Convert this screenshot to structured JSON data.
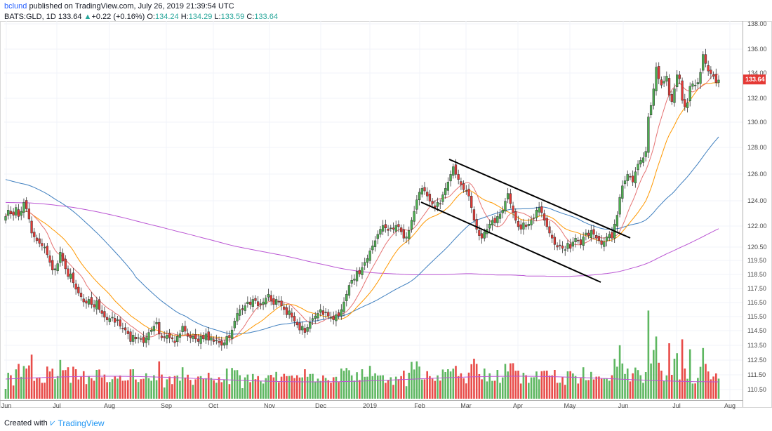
{
  "header": {
    "user": "bclund",
    "published": " published on TradingView.com, July 26, 2019 21:39:54 UTC",
    "symbol": "BATS:GLD, 1D",
    "last": "133.64",
    "change_arrow": "▲",
    "change": "+0.22 (+0.16%)",
    "o_label": "O:",
    "o_val": "134.24",
    "h_label": "H:",
    "h_val": "134.29",
    "l_label": "L:",
    "l_val": "133.59",
    "c_label": "C:",
    "c_val": "133.64"
  },
  "footer": {
    "created_with": "Created with",
    "brand": "TradingView"
  },
  "colors": {
    "up": "#4caf50",
    "down": "#e53935",
    "ma_red": "#e57373",
    "ma_orange": "#ff9800",
    "ma_blue": "#3f7fbf",
    "ma_purple": "#ba55d3",
    "price_tag": "#e53935"
  },
  "chart_data": {
    "type": "candlestick",
    "x_tick_labels": [
      "Jun",
      "Jul",
      "Aug",
      "Sep",
      "Oct",
      "Nov",
      "Dec",
      "2019",
      "Feb",
      "Mar",
      "Apr",
      "May",
      "Jun",
      "Jul",
      "Aug"
    ],
    "y_tick_labels": [
      "138.00",
      "136.00",
      "134.00",
      "132.00",
      "130.00",
      "128.00",
      "126.00",
      "124.00",
      "122.00",
      "120.50",
      "119.50",
      "118.50",
      "117.50",
      "116.50",
      "115.50",
      "114.50",
      "113.50",
      "112.50",
      "111.50",
      "110.50"
    ],
    "current_price_label": "133.64",
    "trendlines": [
      {
        "from": [
          "Feb",
          127.2
        ],
        "to": [
          "May",
          121.2
        ]
      },
      {
        "from": [
          "Feb",
          123.8
        ],
        "to": [
          "May",
          118.0
        ]
      }
    ],
    "closes": [
      122.9,
      123.4,
      123.1,
      123.0,
      123.6,
      122.9,
      123.3,
      124.0,
      123.5,
      122.7,
      121.6,
      121.3,
      121.0,
      120.8,
      120.6,
      120.5,
      119.9,
      119.3,
      118.7,
      118.8,
      119.2,
      120.1,
      119.4,
      118.8,
      118.2,
      118.4,
      117.7,
      117.2,
      116.9,
      116.6,
      116.2,
      116.1,
      116.4,
      116.0,
      115.8,
      116.3,
      115.6,
      115.3,
      115.0,
      114.8,
      114.9,
      115.0,
      114.6,
      114.8,
      114.3,
      114.1,
      114.0,
      113.7,
      113.1,
      113.6,
      113.3,
      113.4,
      113.3,
      113.0,
      113.4,
      113.8,
      114.0,
      114.3,
      114.6,
      113.7,
      113.4,
      113.4,
      113.6,
      113.4,
      113.3,
      113.0,
      113.5,
      113.7,
      114.3,
      113.9,
      113.5,
      113.4,
      113.5,
      113.3,
      113.1,
      113.5,
      113.3,
      113.7,
      113.2,
      113.4,
      113.1,
      113.2,
      113.0,
      112.8,
      113.0,
      113.5,
      113.4,
      114.0,
      114.7,
      115.3,
      115.6,
      115.6,
      115.9,
      116.2,
      116.0,
      116.4,
      116.3,
      115.9,
      116.0,
      116.2,
      116.5,
      116.8,
      116.3,
      116.0,
      116.4,
      116.2,
      115.9,
      115.6,
      115.2,
      115.5,
      115.0,
      114.7,
      114.4,
      114.0,
      114.3,
      113.8,
      114.2,
      114.6,
      114.9,
      115.1,
      115.3,
      115.6,
      115.2,
      115.4,
      115.1,
      115.0,
      114.8,
      115.2,
      115.1,
      115.6,
      116.2,
      116.8,
      117.5,
      117.9,
      118.0,
      118.6,
      118.4,
      118.9,
      119.3,
      119.6,
      120.2,
      120.6,
      121.0,
      121.5,
      121.9,
      122.2,
      122.0,
      121.8,
      122.0,
      121.9,
      122.2,
      122.1,
      121.7,
      121.2,
      121.3,
      121.8,
      122.6,
      123.3,
      124.2,
      124.8,
      125.1,
      124.9,
      124.5,
      124.1,
      123.9,
      123.6,
      124.0,
      123.9,
      124.6,
      125.1,
      125.6,
      126.2,
      126.8,
      126.2,
      125.8,
      125.4,
      125.0,
      124.9,
      124.5,
      123.6,
      122.6,
      121.9,
      121.4,
      121.2,
      121.7,
      121.9,
      122.3,
      122.6,
      122.4,
      122.9,
      123.1,
      123.4,
      124.1,
      124.7,
      123.9,
      123.2,
      122.6,
      122.1,
      121.9,
      122.4,
      122.1,
      122.3,
      122.6,
      122.8,
      123.4,
      123.6,
      123.2,
      122.6,
      122.1,
      121.6,
      121.2,
      120.7,
      120.5,
      120.6,
      120.4,
      120.3,
      120.8,
      120.4,
      120.9,
      121.2,
      121.0,
      120.7,
      121.3,
      121.6,
      121.4,
      121.8,
      121.5,
      121.2,
      121.0,
      120.7,
      120.9,
      121.3,
      121.5,
      121.2,
      122.3,
      123.0,
      124.4,
      125.3,
      125.7,
      126.2,
      126.0,
      125.6,
      126.4,
      127.0,
      127.3,
      127.5,
      128.0,
      130.7,
      131.6,
      132.9,
      134.6,
      133.7,
      133.2,
      133.5,
      133.9,
      132.4,
      131.9,
      132.9,
      134.0,
      133.7,
      132.0,
      131.5,
      131.8,
      133.1,
      133.3,
      133.2,
      133.4,
      134.2,
      135.6,
      134.9,
      134.3,
      134.1,
      133.9,
      133.4,
      133.6
    ],
    "ma_periods": [
      10,
      20,
      50,
      200
    ],
    "volume": "bars (relative), red = down day, green = up day"
  }
}
